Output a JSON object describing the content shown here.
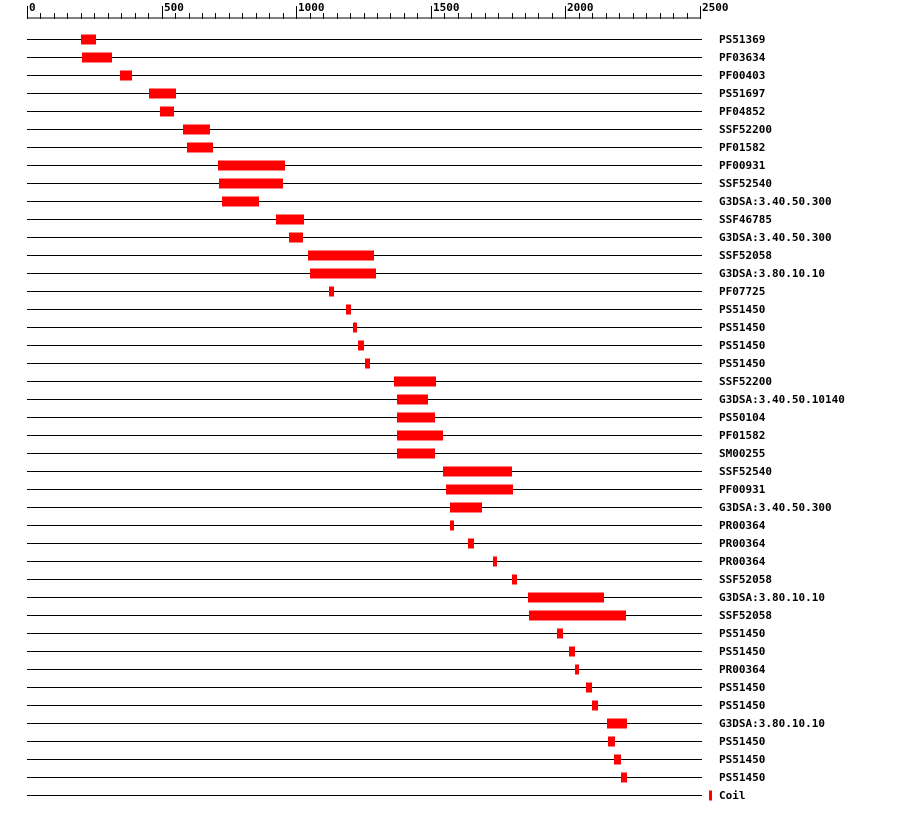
{
  "colors": {
    "feature": "#ff0000",
    "line": "#000000",
    "background": "#ffffff"
  },
  "axis": {
    "min": 0,
    "max": 2500,
    "major_step": 500,
    "minor_step": 50,
    "tick_labels": [
      "0",
      "500",
      "1000",
      "1500",
      "2000",
      "2500"
    ]
  },
  "rows": [
    {
      "label": "PS51369",
      "start": 200,
      "end": 255
    },
    {
      "label": "PF03634",
      "start": 205,
      "end": 315
    },
    {
      "label": "PF00403",
      "start": 345,
      "end": 390
    },
    {
      "label": "PS51697",
      "start": 455,
      "end": 555
    },
    {
      "label": "PF04852",
      "start": 495,
      "end": 545
    },
    {
      "label": "SSF52200",
      "start": 580,
      "end": 680
    },
    {
      "label": "PF01582",
      "start": 595,
      "end": 690
    },
    {
      "label": "PF00931",
      "start": 710,
      "end": 960
    },
    {
      "label": "SSF52540",
      "start": 715,
      "end": 950
    },
    {
      "label": "G3DSA:3.40.50.300",
      "start": 725,
      "end": 860
    },
    {
      "label": "SSF46785",
      "start": 925,
      "end": 1030
    },
    {
      "label": "G3DSA:3.40.50.300",
      "start": 975,
      "end": 1025
    },
    {
      "label": "SSF52058",
      "start": 1045,
      "end": 1290
    },
    {
      "label": "G3DSA:3.80.10.10",
      "start": 1050,
      "end": 1295
    },
    {
      "label": "PF07725",
      "start": 1120,
      "end": 1140
    },
    {
      "label": "PS51450",
      "start": 1185,
      "end": 1205
    },
    {
      "label": "PS51450",
      "start": 1210,
      "end": 1225
    },
    {
      "label": "PS51450",
      "start": 1230,
      "end": 1250
    },
    {
      "label": "PS51450",
      "start": 1255,
      "end": 1275
    },
    {
      "label": "SSF52200",
      "start": 1365,
      "end": 1520
    },
    {
      "label": "G3DSA:3.40.50.10140",
      "start": 1375,
      "end": 1490
    },
    {
      "label": "PS50104",
      "start": 1375,
      "end": 1515
    },
    {
      "label": "PF01582",
      "start": 1375,
      "end": 1545
    },
    {
      "label": "SM00255",
      "start": 1375,
      "end": 1515
    },
    {
      "label": "SSF52540",
      "start": 1545,
      "end": 1800
    },
    {
      "label": "PF00931",
      "start": 1555,
      "end": 1805
    },
    {
      "label": "G3DSA:3.40.50.300",
      "start": 1570,
      "end": 1690
    },
    {
      "label": "PR00364",
      "start": 1570,
      "end": 1585
    },
    {
      "label": "PR00364",
      "start": 1640,
      "end": 1660
    },
    {
      "label": "PR00364",
      "start": 1730,
      "end": 1745
    },
    {
      "label": "SSF52058",
      "start": 1800,
      "end": 1820
    },
    {
      "label": "G3DSA:3.80.10.10",
      "start": 1860,
      "end": 2145
    },
    {
      "label": "SSF52058",
      "start": 1865,
      "end": 2225
    },
    {
      "label": "PS51450",
      "start": 1970,
      "end": 1990
    },
    {
      "label": "PS51450",
      "start": 2015,
      "end": 2035
    },
    {
      "label": "PR00364",
      "start": 2035,
      "end": 2050
    },
    {
      "label": "PS51450",
      "start": 2075,
      "end": 2100
    },
    {
      "label": "PS51450",
      "start": 2100,
      "end": 2120
    },
    {
      "label": "G3DSA:3.80.10.10",
      "start": 2155,
      "end": 2230
    },
    {
      "label": "PS51450",
      "start": 2160,
      "end": 2185
    },
    {
      "label": "PS51450",
      "start": 2180,
      "end": 2205
    },
    {
      "label": "PS51450",
      "start": 2205,
      "end": 2230
    },
    {
      "label": "Coil",
      "start": 2535,
      "end": 2545
    }
  ]
}
